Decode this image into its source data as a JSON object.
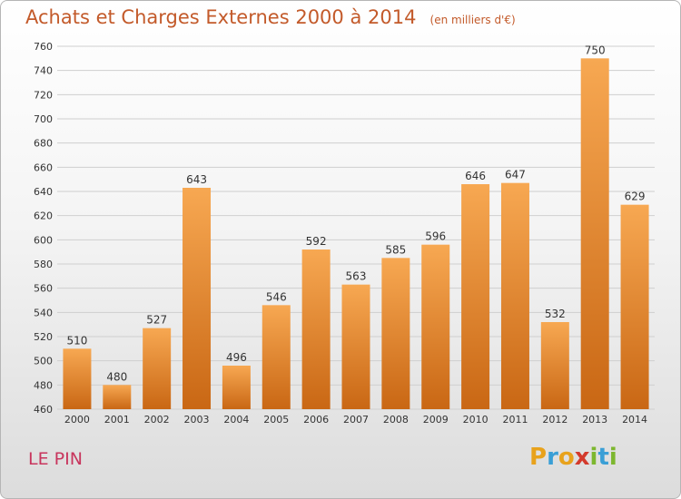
{
  "header": {
    "title": "Achats et Charges Externes 2000 à 2014",
    "units": "(en milliers d'€)"
  },
  "footer": {
    "commune": "LE PIN",
    "brand": {
      "letters": [
        "P",
        "r",
        "o",
        "x",
        "i",
        "t",
        "i"
      ],
      "colors": [
        "#e8a21c",
        "#3a9fd6",
        "#e8a21c",
        "#d33a2c",
        "#7db72f",
        "#3a9fd6",
        "#7db72f"
      ]
    }
  },
  "colors": {
    "bar_light": "#f7a852",
    "bar_dark": "#c96714",
    "grid": "#cfcfcf"
  },
  "chart_data": {
    "type": "bar",
    "categories": [
      "2000",
      "2001",
      "2002",
      "2003",
      "2004",
      "2005",
      "2006",
      "2007",
      "2008",
      "2009",
      "2010",
      "2011",
      "2012",
      "2013",
      "2014"
    ],
    "values": [
      510,
      480,
      527,
      643,
      496,
      546,
      592,
      563,
      585,
      596,
      646,
      647,
      532,
      750,
      629
    ],
    "value_labels": [
      "510",
      "480",
      "527",
      "643",
      "496",
      "546",
      "592",
      "563",
      "585",
      "596",
      "646",
      "647",
      "532",
      "750",
      "629"
    ],
    "ylim": [
      460,
      760
    ],
    "yticks": [
      "460",
      "480",
      "500",
      "520",
      "540",
      "560",
      "580",
      "600",
      "620",
      "640",
      "660",
      "680",
      "700",
      "720",
      "740",
      "760"
    ],
    "grid": true
  }
}
